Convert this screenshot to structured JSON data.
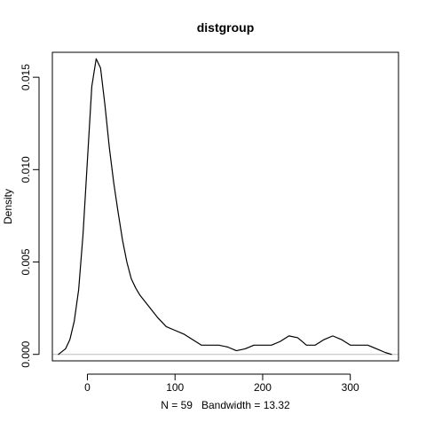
{
  "chart_data": {
    "type": "line",
    "title": "distgroup",
    "xlabel": "N = 59   Bandwidth = 13.32",
    "ylabel": "Density",
    "xlim": [
      -40,
      355
    ],
    "ylim": [
      -0.00035,
      0.01635
    ],
    "x_ticks": [
      0,
      100,
      200,
      300
    ],
    "x_tick_labels": [
      "0",
      "100",
      "200",
      "300"
    ],
    "y_ticks": [
      0.0,
      0.005,
      0.01,
      0.015
    ],
    "y_tick_labels": [
      "0.000",
      "0.005",
      "0.010",
      "0.015"
    ],
    "grid": false,
    "baseline": {
      "y": 0,
      "color": "#bebebe"
    },
    "line_color": "#000000",
    "series": [
      {
        "x": [
          -33,
          -25,
          -20,
          -15,
          -10,
          -5,
          0,
          5,
          10,
          15,
          20,
          25,
          30,
          35,
          40,
          45,
          50,
          55,
          60,
          70,
          80,
          90,
          100,
          110,
          120,
          130,
          140,
          150,
          160,
          170,
          180,
          190,
          200,
          210,
          220,
          230,
          240,
          250,
          260,
          270,
          280,
          290,
          300,
          310,
          320,
          330,
          340,
          347
        ],
        "y": [
          0.0,
          0.0003,
          0.0008,
          0.0018,
          0.0035,
          0.0065,
          0.0105,
          0.0145,
          0.016,
          0.0155,
          0.0135,
          0.0112,
          0.0093,
          0.0077,
          0.0062,
          0.005,
          0.0041,
          0.0036,
          0.0032,
          0.0026,
          0.002,
          0.0015,
          0.0013,
          0.0011,
          0.0008,
          0.0005,
          0.0005,
          0.0005,
          0.0004,
          0.0002,
          0.0003,
          0.0005,
          0.0005,
          0.0005,
          0.0007,
          0.001,
          0.0009,
          0.0005,
          0.0005,
          0.0008,
          0.001,
          0.0008,
          0.0005,
          0.0005,
          0.0005,
          0.0003,
          0.0001,
          0.0
        ]
      }
    ]
  }
}
